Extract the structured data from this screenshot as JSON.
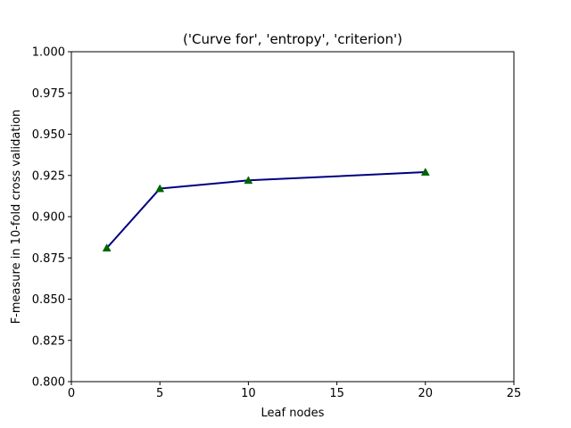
{
  "chart_data": {
    "type": "line",
    "title": "('Curve for', 'entropy', 'criterion')",
    "xlabel": "Leaf nodes",
    "ylabel": "F-measure in 10-fold cross validation",
    "xlim": [
      0,
      25
    ],
    "ylim": [
      0.8,
      1.0
    ],
    "x_ticks": [
      0,
      5,
      10,
      15,
      20,
      25
    ],
    "x_tick_labels": [
      "0",
      "5",
      "10",
      "15",
      "20",
      "25"
    ],
    "y_ticks": [
      0.8,
      0.825,
      0.85,
      0.875,
      0.9,
      0.925,
      0.95,
      0.975,
      1.0
    ],
    "y_tick_labels": [
      "0.800",
      "0.825",
      "0.850",
      "0.875",
      "0.900",
      "0.925",
      "0.950",
      "0.975",
      "1.000"
    ],
    "grid": false,
    "series": [
      {
        "x": [
          2,
          5,
          10,
          20
        ],
        "y": [
          0.881,
          0.917,
          0.922,
          0.927
        ],
        "line_color": "#00007f",
        "marker": "triangle",
        "marker_color": "#006400"
      }
    ]
  }
}
